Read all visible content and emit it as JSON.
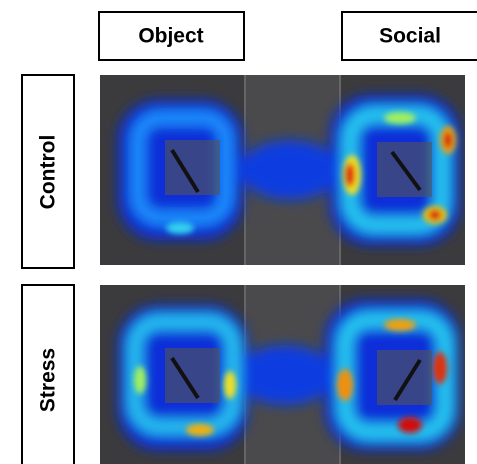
{
  "column_labels": [
    "Object",
    "Social"
  ],
  "row_labels": [
    "Control",
    "Stress"
  ]
}
